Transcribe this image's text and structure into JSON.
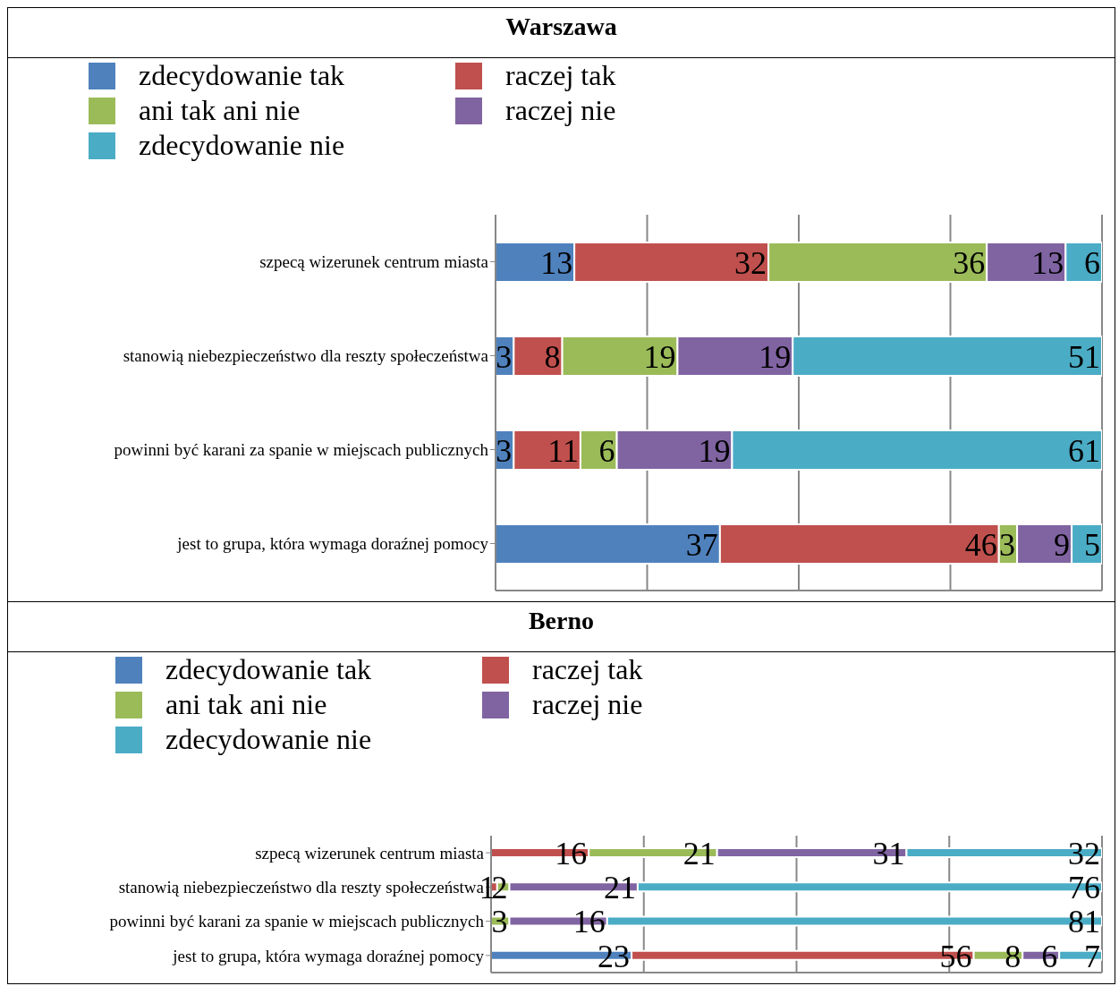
{
  "chart_data": [
    {
      "type": "bar",
      "orientation": "horizontal",
      "stacked": true,
      "title": "Warszawa",
      "categories": [
        "szpecą wizerunek centrum miasta",
        "stanowią niebezpieczeństwo dla reszty społeczeństwa",
        "powinni być karani za spanie w miejscach publicznych",
        "jest to grupa, która wymaga doraźnej pomocy"
      ],
      "series": [
        {
          "name": "zdecydowanie tak",
          "color": "#4f81bd",
          "values": [
            13,
            3,
            3,
            37
          ]
        },
        {
          "name": "raczej tak",
          "color": "#c0504d",
          "values": [
            32,
            8,
            11,
            46
          ]
        },
        {
          "name": "ani tak ani nie",
          "color": "#9bbb59",
          "values": [
            36,
            19,
            6,
            3
          ]
        },
        {
          "name": "raczej nie",
          "color": "#8064a2",
          "values": [
            13,
            19,
            19,
            9
          ]
        },
        {
          "name": "zdecydowanie nie",
          "color": "#4bacc6",
          "values": [
            6,
            51,
            61,
            5
          ]
        }
      ],
      "xlim": [
        0,
        100
      ],
      "grid": "x",
      "legend": "top left",
      "tick_labels": "y",
      "data_labels": true
    },
    {
      "type": "bar",
      "orientation": "horizontal",
      "stacked": true,
      "title": "Berno",
      "categories": [
        "szpecą wizerunek centrum miasta",
        "stanowią niebezpieczeństwo dla reszty społeczeństwa",
        "powinni być karani za spanie w miejscach publicznych",
        "jest to grupa, która wymaga doraźnej pomocy"
      ],
      "series": [
        {
          "name": "zdecydowanie tak",
          "color": "#4f81bd",
          "values": [
            null,
            null,
            null,
            23
          ]
        },
        {
          "name": "raczej tak",
          "color": "#c0504d",
          "values": [
            16,
            1,
            null,
            56
          ]
        },
        {
          "name": "ani tak ani nie",
          "color": "#9bbb59",
          "values": [
            21,
            2,
            3,
            8
          ]
        },
        {
          "name": "raczej nie",
          "color": "#8064a2",
          "values": [
            31,
            21,
            16,
            6
          ]
        },
        {
          "name": "zdecydowanie nie",
          "color": "#4bacc6",
          "values": [
            32,
            76,
            81,
            7
          ]
        }
      ],
      "xlim": [
        0,
        100
      ],
      "grid": "x",
      "legend": "top left",
      "tick_labels": "y",
      "data_labels": true
    }
  ]
}
